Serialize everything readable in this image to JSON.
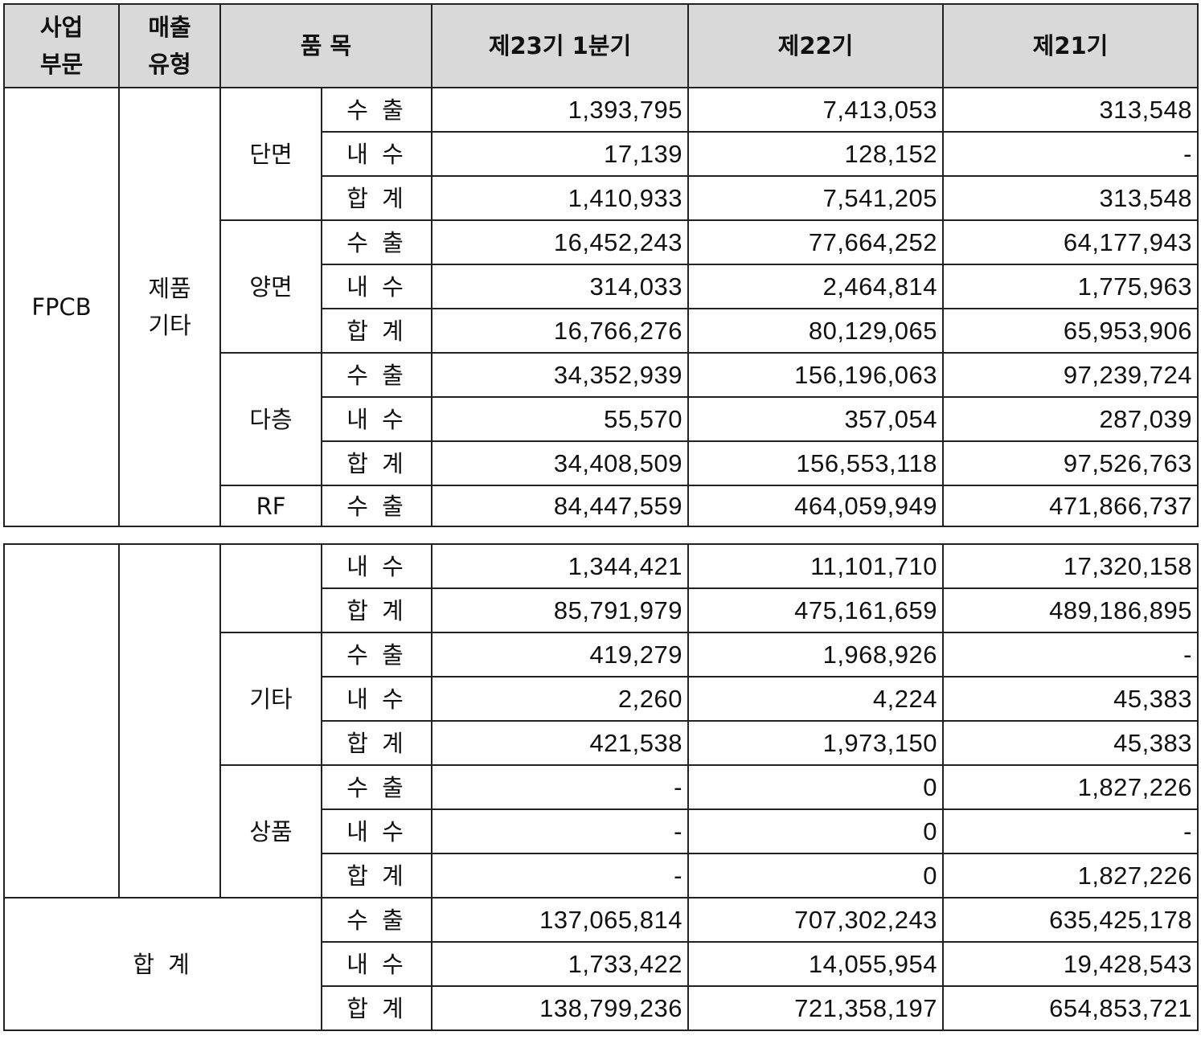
{
  "header": {
    "segment": "사업\n부문",
    "sales_type": "매출\n유형",
    "item": "품 목",
    "periods": [
      "제23기 1분기",
      "제22기",
      "제21기"
    ]
  },
  "segment": "FPCB",
  "sales_type": "제품\n기타",
  "groups": [
    {
      "item": "단면",
      "rows": [
        {
          "kind": "수 출",
          "values": [
            "1,393,795",
            "7,413,053",
            "313,548"
          ]
        },
        {
          "kind": "내 수",
          "values": [
            "17,139",
            "128,152",
            "-"
          ]
        },
        {
          "kind": "합 계",
          "values": [
            "1,410,933",
            "7,541,205",
            "313,548"
          ]
        }
      ]
    },
    {
      "item": "양면",
      "rows": [
        {
          "kind": "수 출",
          "values": [
            "16,452,243",
            "77,664,252",
            "64,177,943"
          ]
        },
        {
          "kind": "내 수",
          "values": [
            "314,033",
            "2,464,814",
            "1,775,963"
          ]
        },
        {
          "kind": "합 계",
          "values": [
            "16,766,276",
            "80,129,065",
            "65,953,906"
          ]
        }
      ]
    },
    {
      "item": "다층",
      "rows": [
        {
          "kind": "수 출",
          "values": [
            "34,352,939",
            "156,196,063",
            "97,239,724"
          ]
        },
        {
          "kind": "내 수",
          "values": [
            "55,570",
            "357,054",
            "287,039"
          ]
        },
        {
          "kind": "합 계",
          "values": [
            "34,408,509",
            "156,553,118",
            "97,526,763"
          ]
        }
      ]
    },
    {
      "item": "RF",
      "rows": [
        {
          "kind": "수 출",
          "values": [
            "84,447,559",
            "464,059,949",
            "471,866,737"
          ]
        },
        {
          "kind": "내 수",
          "values": [
            "1,344,421",
            "11,101,710",
            "17,320,158"
          ]
        },
        {
          "kind": "합 계",
          "values": [
            "85,791,979",
            "475,161,659",
            "489,186,895"
          ]
        }
      ]
    },
    {
      "item": "기타",
      "rows": [
        {
          "kind": "수 출",
          "values": [
            "419,279",
            "1,968,926",
            "-"
          ]
        },
        {
          "kind": "내 수",
          "values": [
            "2,260",
            "4,224",
            "45,383"
          ]
        },
        {
          "kind": "합 계",
          "values": [
            "421,538",
            "1,973,150",
            "45,383"
          ]
        }
      ]
    },
    {
      "item": "상품",
      "rows": [
        {
          "kind": "수 출",
          "values": [
            "-",
            "0",
            "1,827,226"
          ]
        },
        {
          "kind": "내 수",
          "values": [
            "-",
            "0",
            "-"
          ]
        },
        {
          "kind": "합 계",
          "values": [
            "-",
            "0",
            "1,827,226"
          ]
        }
      ]
    }
  ],
  "total": {
    "label": "합 계",
    "rows": [
      {
        "kind": "수 출",
        "values": [
          "137,065,814",
          "707,302,243",
          "635,425,178"
        ]
      },
      {
        "kind": "내 수",
        "values": [
          "1,733,422",
          "14,055,954",
          "19,428,543"
        ]
      },
      {
        "kind": "합 계",
        "values": [
          "138,799,236",
          "721,358,197",
          "654,853,721"
        ]
      }
    ]
  }
}
